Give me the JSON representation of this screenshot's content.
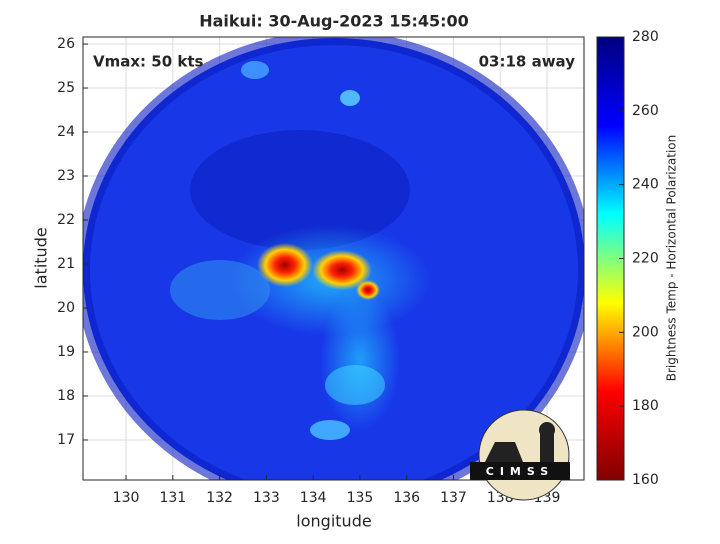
{
  "chart_data": {
    "type": "map",
    "title": "Haikui: 30-Aug-2023 15:45:00",
    "x_label": "longitude",
    "y_label": "latitude",
    "annotations": [
      "Vmax: 50 kts",
      "03:18 away"
    ],
    "xlim": [
      129.08,
      139.79
    ],
    "ylim": [
      16.09,
      26.16
    ],
    "xticks": [
      130,
      131,
      132,
      133,
      134,
      135,
      136,
      137,
      138,
      139
    ],
    "yticks": [
      17,
      18,
      19,
      20,
      21,
      22,
      23,
      24,
      25,
      26
    ],
    "grid": true,
    "colorbar": {
      "label": "Brightness Temp - Horizontal Polarization",
      "colormap": [
        "#800000",
        "#ff0000",
        "#ffff00",
        "#00ffff",
        "#0000ff",
        "#000080"
      ],
      "lim": [
        160,
        280
      ],
      "ticks": [
        160,
        180,
        200,
        220,
        240,
        260,
        280
      ]
    },
    "logo": "CIMSS"
  }
}
